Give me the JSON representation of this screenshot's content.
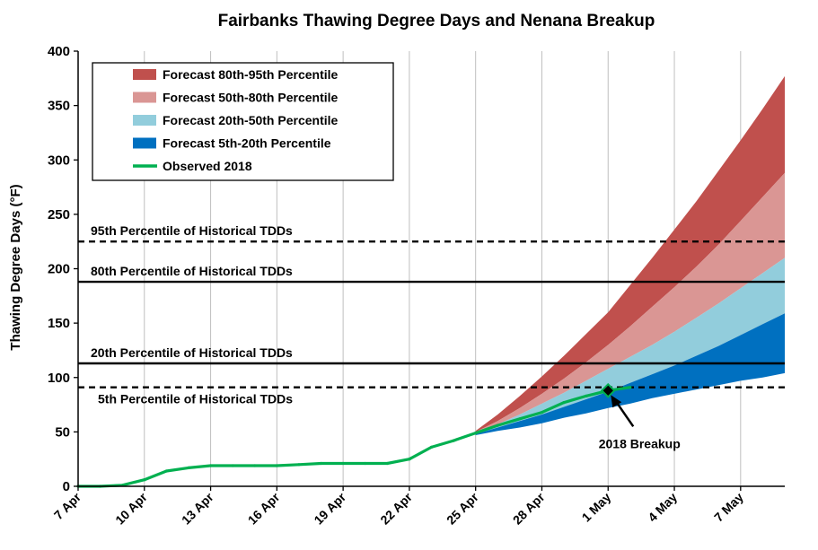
{
  "chart_data": {
    "type": "area",
    "title": "Fairbanks Thawing Degree Days and Nenana Breakup",
    "ylabel": "Thawing Degree Days (°F)",
    "xlabel": "",
    "ylim": [
      0,
      400
    ],
    "yticks": [
      0,
      50,
      100,
      150,
      200,
      250,
      300,
      350,
      400
    ],
    "xlim": [
      0,
      32
    ],
    "xticks": [
      {
        "x": 0,
        "label": "7 Apr"
      },
      {
        "x": 3,
        "label": "10 Apr"
      },
      {
        "x": 6,
        "label": "13 Apr"
      },
      {
        "x": 9,
        "label": "16 Apr"
      },
      {
        "x": 12,
        "label": "19 Apr"
      },
      {
        "x": 15,
        "label": "22 Apr"
      },
      {
        "x": 18,
        "label": "25 Apr"
      },
      {
        "x": 21,
        "label": "28 Apr"
      },
      {
        "x": 24,
        "label": "1 May"
      },
      {
        "x": 27,
        "label": "4 May"
      },
      {
        "x": 30,
        "label": "7 May"
      }
    ],
    "grid": "vertical",
    "legend_position": "top-left",
    "forecast_x": [
      18,
      19,
      20,
      21,
      22,
      23,
      24,
      25,
      26,
      27,
      28,
      29,
      30,
      31,
      32
    ],
    "bands": [
      {
        "name": "Forecast 80th-95th Percentile",
        "color": "#c0504d",
        "lower": [
          50,
          60,
          72,
          85,
          99,
          114,
          130,
          147,
          165,
          183,
          202,
          222,
          244,
          266,
          288
        ],
        "upper": [
          51,
          66,
          83,
          101,
          120,
          140,
          160,
          185,
          210,
          236,
          262,
          290,
          318,
          347,
          377
        ]
      },
      {
        "name": "Forecast 50th-80th Percentile",
        "color": "#da9694",
        "lower": [
          49,
          57,
          66,
          76,
          86,
          97,
          108,
          119,
          130,
          142,
          155,
          168,
          182,
          196,
          210
        ],
        "upper": [
          50,
          60,
          72,
          85,
          99,
          114,
          130,
          147,
          165,
          183,
          202,
          222,
          244,
          266,
          288
        ]
      },
      {
        "name": "Forecast 20th-50th Percentile",
        "color": "#92cddc",
        "lower": [
          48,
          54,
          60,
          66,
          73,
          80,
          87,
          95,
          103,
          111,
          120,
          129,
          139,
          149,
          159
        ],
        "upper": [
          49,
          57,
          66,
          76,
          86,
          97,
          108,
          119,
          130,
          142,
          155,
          168,
          182,
          196,
          210
        ]
      },
      {
        "name": "Forecast 5th-20th Percentile",
        "color": "#0070c0",
        "lower": [
          47,
          51,
          54,
          58,
          63,
          67,
          72,
          76,
          81,
          85,
          89,
          93,
          97,
          100,
          104
        ],
        "upper": [
          48,
          54,
          60,
          66,
          73,
          80,
          87,
          95,
          103,
          111,
          120,
          129,
          139,
          149,
          159
        ]
      }
    ],
    "observed": {
      "name": "Observed 2018",
      "color": "#00b050",
      "x": [
        0,
        1,
        2,
        3,
        4,
        5,
        6,
        7,
        8,
        9,
        10,
        11,
        12,
        13,
        14,
        15,
        16,
        17,
        18,
        19,
        20,
        21,
        22,
        23,
        24,
        25
      ],
      "y": [
        0,
        0,
        1,
        6,
        14,
        17,
        19,
        19,
        19,
        19,
        20,
        21,
        21,
        21,
        21,
        25,
        36,
        42,
        49,
        56,
        62,
        68,
        77,
        83,
        88,
        91
      ]
    },
    "reference_lines": [
      {
        "value": 225,
        "label": "95th Percentile of Historical TDDs",
        "style": "dashed"
      },
      {
        "value": 188,
        "label": "80th Percentile of Historical TDDs",
        "style": "solid"
      },
      {
        "value": 113,
        "label": "20th Percentile of Historical TDDs",
        "style": "solid"
      },
      {
        "value": 91,
        "label": "5th Percentile of Historical TDDs",
        "style": "dashed"
      }
    ],
    "annotation": {
      "label": "2018 Breakup",
      "x": 24,
      "y": 88
    }
  }
}
